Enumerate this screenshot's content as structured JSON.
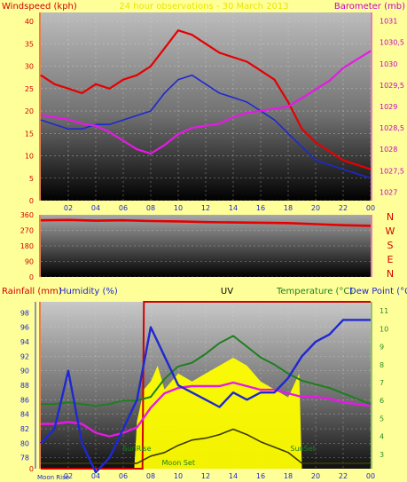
{
  "colors": {
    "page_bg": "#ffff99",
    "wind": "#e60000",
    "wind_avg": "#1e28d2",
    "barometer": "#e619e6",
    "direction": "#e60000",
    "rain": "#d20000",
    "humidity": "#1e28d2",
    "uv": "#ffff00",
    "temperature": "#1e7f1e",
    "dewpoint": "#1e28d2",
    "sun": "#1f7f1f",
    "moon": "#1e28d2",
    "axis_left": "#d20000",
    "axis_right": "#c800c8",
    "axis_green": "#2a8a2a",
    "tick_blue": "#1e28d2"
  },
  "chart_data": [
    {
      "type": "line",
      "title": "24 hour observations - 30 March 2013",
      "ylabel_left": "Windspeed (kph)",
      "ylabel_right": "Barometer (mb)",
      "x_tick_labels": [
        "02",
        "04",
        "06",
        "08",
        "10",
        "12",
        "14",
        "16",
        "18",
        "20",
        "22",
        "00"
      ],
      "x_range_hours": [
        0,
        24
      ],
      "ylim_left": [
        0,
        42
      ],
      "yticks_left": [
        0,
        5,
        10,
        15,
        20,
        25,
        30,
        35,
        40
      ],
      "ylim_right": [
        1026.8,
        1031.2
      ],
      "yticks_right": [
        "1027",
        "1027,5",
        "1028",
        "1028,5",
        "1029",
        "1029,5",
        "1030",
        "1030,5",
        "1031"
      ],
      "series": [
        {
          "axis": "left",
          "hours": [
            0,
            1,
            2,
            3,
            4,
            5,
            6,
            7,
            8,
            9,
            10,
            11,
            12,
            13,
            14,
            15,
            16,
            17,
            18,
            19,
            20,
            21,
            22,
            23,
            24
          ],
          "values": [
            28,
            26,
            25,
            24,
            26,
            25,
            27,
            28,
            30,
            34,
            38,
            37,
            35,
            33,
            32,
            31,
            29,
            27,
            22,
            16,
            13,
            11,
            9,
            8,
            7
          ]
        },
        {
          "axis": "left",
          "hours": [
            0,
            1,
            2,
            3,
            4,
            5,
            6,
            7,
            8,
            9,
            10,
            11,
            12,
            13,
            14,
            15,
            16,
            17,
            18,
            19,
            20,
            21,
            22,
            23,
            24
          ],
          "values": [
            18,
            17,
            16,
            16,
            17,
            17,
            18,
            19,
            20,
            24,
            27,
            28,
            26,
            24,
            23,
            22,
            20,
            18,
            15,
            12,
            9,
            8,
            7,
            6,
            5
          ]
        },
        {
          "axis": "right",
          "hours": [
            0,
            1,
            2,
            3,
            4,
            5,
            6,
            7,
            8,
            9,
            10,
            11,
            12,
            13,
            14,
            15,
            16,
            17,
            18,
            19,
            20,
            21,
            22,
            23,
            24
          ],
          "values": [
            1028.8,
            1028.75,
            1028.7,
            1028.6,
            1028.55,
            1028.4,
            1028.2,
            1028.0,
            1027.9,
            1028.1,
            1028.35,
            1028.5,
            1028.55,
            1028.6,
            1028.75,
            1028.85,
            1028.9,
            1028.95,
            1029.0,
            1029.2,
            1029.4,
            1029.6,
            1029.9,
            1030.1,
            1030.3
          ]
        }
      ]
    },
    {
      "type": "line",
      "ylabel_right": [
        "N",
        "W",
        "S",
        "E",
        "N"
      ],
      "yticks_left": [
        0,
        90,
        180,
        270,
        360
      ],
      "ylim": [
        0,
        360
      ],
      "series": [
        {
          "hours": [
            0,
            2,
            4,
            6,
            8,
            10,
            12,
            14,
            16,
            18,
            20,
            22,
            24
          ],
          "values": [
            328,
            330,
            326,
            328,
            324,
            322,
            318,
            316,
            314,
            312,
            306,
            300,
            296
          ]
        }
      ]
    },
    {
      "type": "line",
      "ylabel_left": [
        "Rainfall (mm)",
        "Humidity (%)"
      ],
      "ylabel_center": "UV",
      "ylabel_right": [
        "Temperature (°C)",
        "Dew Point (°C)"
      ],
      "ylim_humidity": [
        76.5,
        99.5
      ],
      "yticks_left": [
        78,
        80,
        82,
        84,
        86,
        88,
        90,
        92,
        94,
        96,
        98
      ],
      "ylim_temp": [
        2.2,
        11.5
      ],
      "yticks_right": [
        3,
        4,
        5,
        6,
        7,
        8,
        9,
        10,
        11
      ],
      "rain_yticks": [
        "0"
      ],
      "rain_max_mm": 0.4,
      "event_labels": {
        "moonrise": "Moon Rise",
        "sunrise": "SunRise",
        "moonset": "Moon Set",
        "sunset": "SunSet"
      },
      "events_hours": {
        "moonrise": 0.8,
        "sunrise": 7.0,
        "moonset": 9.5,
        "sunset": 19.2
      },
      "series": [
        {
          "axis": "rain",
          "hours": [
            0,
            7.4,
            7.5,
            24
          ],
          "values": [
            0,
            0,
            0.4,
            0.4
          ]
        },
        {
          "axis": "humidity",
          "hours": [
            0,
            1,
            2,
            3,
            4,
            5,
            6,
            7,
            8,
            9,
            10,
            11,
            12,
            13,
            14,
            15,
            16,
            17,
            18,
            19,
            20,
            21,
            22,
            23,
            24
          ],
          "values": [
            80,
            82,
            90,
            80,
            76,
            78,
            82,
            86,
            96,
            92,
            88,
            87,
            86,
            85,
            87,
            86,
            87,
            87,
            89,
            92,
            94,
            95,
            97,
            97,
            97
          ]
        },
        {
          "axis": "temp",
          "hours": [
            0,
            1,
            2,
            3,
            4,
            5,
            6,
            7,
            8,
            9,
            10,
            11,
            12,
            13,
            14,
            15,
            16,
            17,
            18,
            19,
            20,
            21,
            22,
            23,
            24
          ],
          "values": [
            4.7,
            4.7,
            4.8,
            4.7,
            4.2,
            4.0,
            4.2,
            4.5,
            5.6,
            6.4,
            6.7,
            6.8,
            6.8,
            6.8,
            7.0,
            6.8,
            6.6,
            6.6,
            6.4,
            6.2,
            6.2,
            6.1,
            5.9,
            5.8,
            5.7
          ]
        },
        {
          "axis": "temp",
          "hours": [
            0,
            1,
            2,
            3,
            4,
            5,
            6,
            7,
            8,
            9,
            10,
            11,
            12,
            13,
            14,
            15,
            16,
            17,
            18,
            19,
            20,
            21,
            22,
            23,
            24
          ],
          "values": [
            5.8,
            5.8,
            5.9,
            5.8,
            5.7,
            5.8,
            6.0,
            6.0,
            6.2,
            7.2,
            7.9,
            8.1,
            8.6,
            9.2,
            9.6,
            9.0,
            8.4,
            8.0,
            7.5,
            7.1,
            6.9,
            6.7,
            6.4,
            6.1,
            5.8
          ]
        },
        {
          "axis": "temp",
          "hours": [
            0,
            4,
            6,
            7,
            8,
            9,
            10,
            11,
            12,
            13,
            14,
            15,
            16,
            17,
            18,
            19,
            20,
            22,
            24
          ],
          "values": [
            2.5,
            2.5,
            2.5,
            2.5,
            2.9,
            3.1,
            3.5,
            3.8,
            3.9,
            4.1,
            4.4,
            4.1,
            3.7,
            3.4,
            3.1,
            2.5,
            2.5,
            2.5,
            2.5
          ]
        },
        {
          "axis": "uv",
          "hours": [
            6.8,
            7.0,
            7.5,
            8.0,
            8.5,
            9.0,
            10,
            11,
            12,
            13,
            14,
            15,
            16,
            17,
            18,
            18.8,
            19.0
          ],
          "values": [
            0,
            0.3,
            0.5,
            0.55,
            0.65,
            0.5,
            0.6,
            0.55,
            0.6,
            0.65,
            0.7,
            0.65,
            0.55,
            0.5,
            0.45,
            0.6,
            0
          ]
        }
      ]
    }
  ]
}
